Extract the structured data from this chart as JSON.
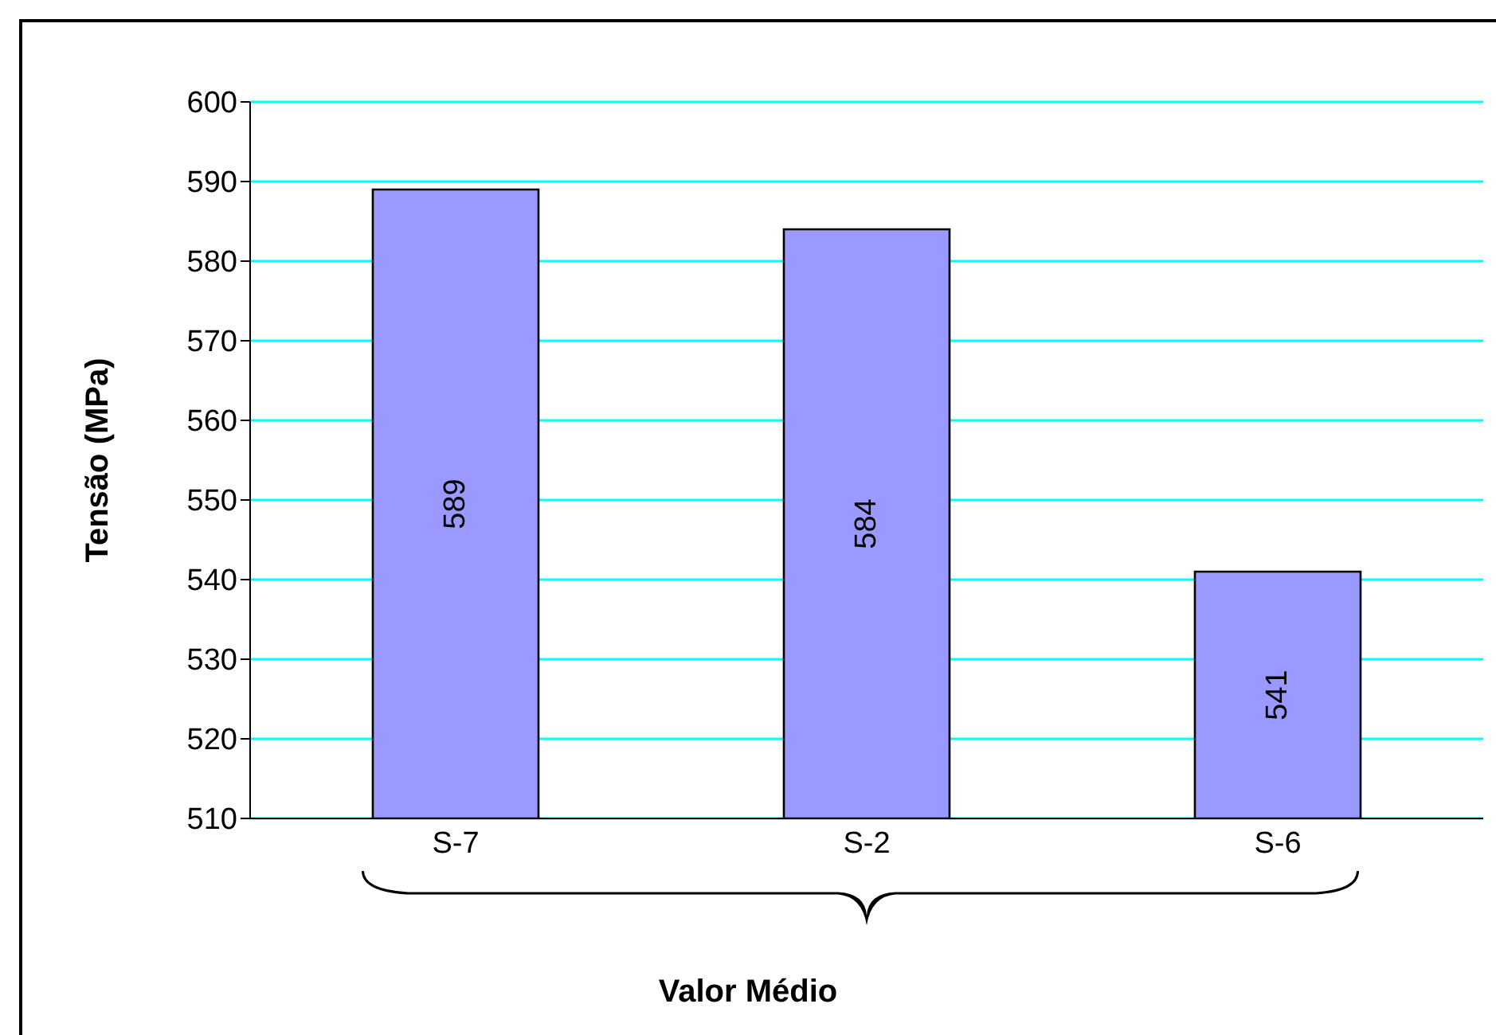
{
  "chart_data": {
    "type": "bar",
    "xlabel": "Valor Médio",
    "ylabel": "Tensão (MPa)",
    "categories": [
      "S-7",
      "S-2",
      "S-6"
    ],
    "values": [
      589,
      584,
      541
    ],
    "color": "#9999ff",
    "ylim": [
      510,
      600
    ],
    "yticks": [
      510,
      520,
      530,
      540,
      550,
      560,
      570,
      580,
      590,
      600
    ],
    "grid": "y",
    "data_labels": true
  }
}
